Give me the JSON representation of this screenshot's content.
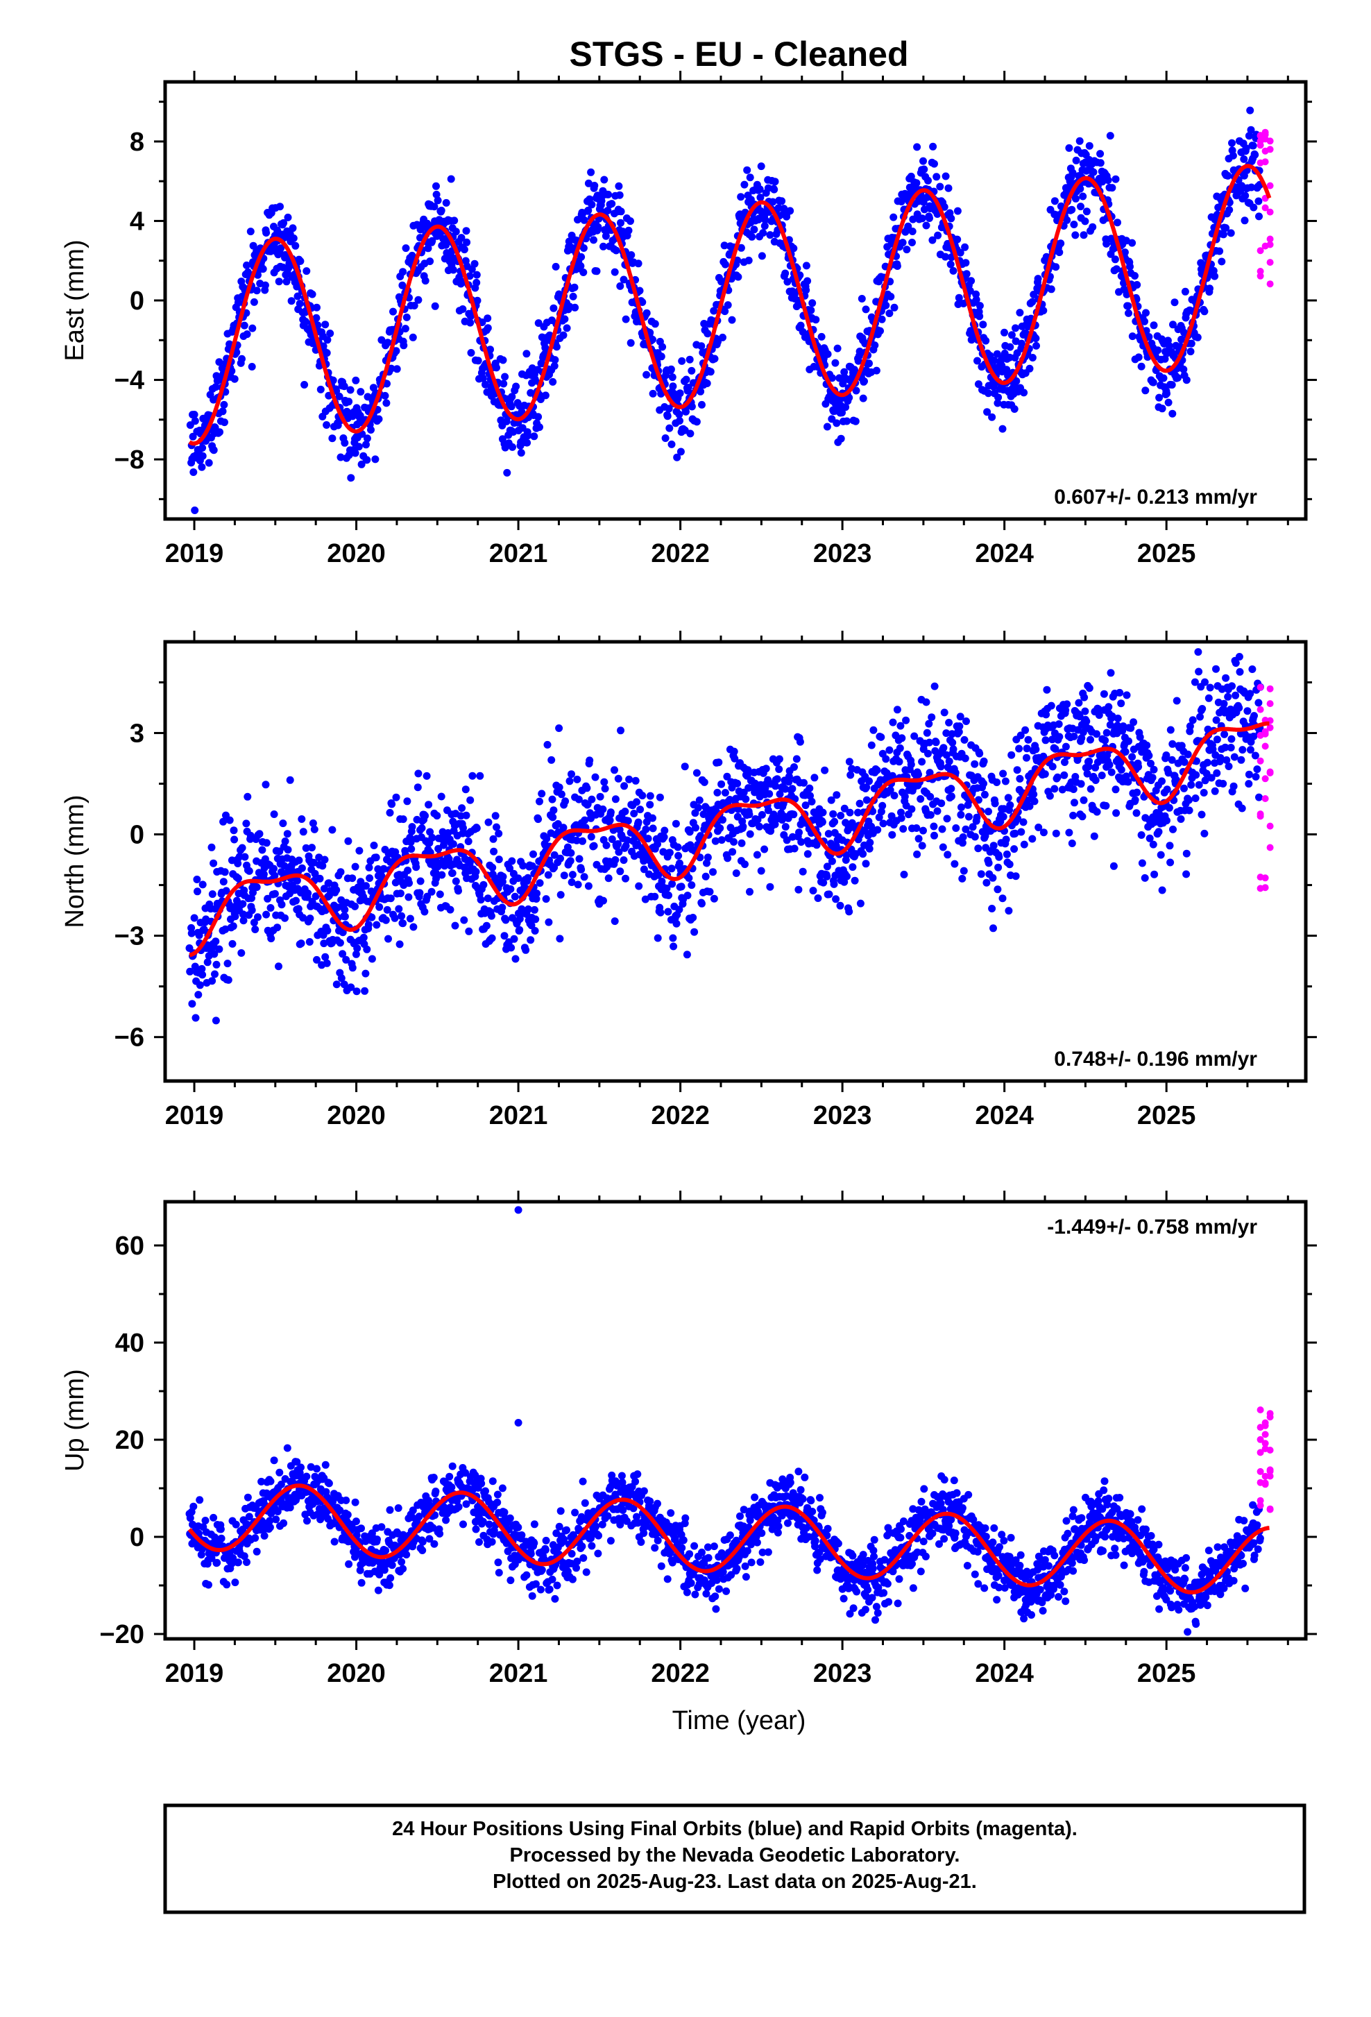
{
  "title": "STGS  - EU - Cleaned",
  "footer": {
    "lines": [
      "24 Hour Positions Using Final Orbits (blue) and Rapid Orbits (magenta).",
      "Processed by the Nevada Geodetic Laboratory.",
      "Plotted on 2025-Aug-23. Last data on 2025-Aug-21."
    ]
  },
  "colors": {
    "final": "#0000ff",
    "rapid": "#ff00ff",
    "model": "#ff0000",
    "axis": "#000000"
  },
  "chart_data": [
    {
      "type": "scatter",
      "ylabel": "East (mm)",
      "xlabel": "",
      "xlim": [
        2018.82,
        2025.86
      ],
      "ylim": [
        -11,
        11
      ],
      "yticks": [
        -8,
        -4,
        0,
        4,
        8
      ],
      "xticks": [
        2019,
        2020,
        2021,
        2022,
        2023,
        2024,
        2025
      ],
      "rate_label": "0.607+/- 0.213 mm/yr",
      "rate_position": "bottom-right",
      "model": {
        "offset": -2.2,
        "trend": 0.61,
        "annual_amp": 5.0,
        "annual_phase": 2019.25,
        "semi_amp": 0.0,
        "semi_phase": 0.0,
        "noise": 1.1
      },
      "rapid": {
        "x_range": [
          2025.58,
          2025.64
        ],
        "y_range": [
          0.6,
          9.2
        ]
      },
      "series": [
        {
          "name": "Final Orbits (blue)",
          "x_range": [
            2018.97,
            2025.58
          ]
        },
        {
          "name": "Rapid Orbits (magenta)",
          "x_range": [
            2025.58,
            2025.64
          ]
        }
      ]
    },
    {
      "type": "scatter",
      "ylabel": "North (mm)",
      "xlabel": "",
      "xlim": [
        2018.82,
        2025.86
      ],
      "ylim": [
        -7.3,
        5.7
      ],
      "yticks": [
        -6,
        -3,
        0,
        3
      ],
      "xticks": [
        2019,
        2020,
        2021,
        2022,
        2023,
        2024,
        2025
      ],
      "rate_label": "0.748+/- 0.196 mm/yr",
      "rate_position": "bottom-right",
      "model": {
        "offset": -2.3,
        "trend": 0.75,
        "annual_amp": 0.9,
        "annual_phase": 2019.22,
        "semi_amp": 0.35,
        "semi_phase": 2019.1,
        "noise": 1.0
      },
      "rapid": {
        "x_range": [
          2025.58,
          2025.64
        ],
        "y_range": [
          -1.6,
          4.9
        ]
      },
      "series": [
        {
          "name": "Final Orbits (blue)",
          "x_range": [
            2018.97,
            2025.58
          ]
        },
        {
          "name": "Rapid Orbits (magenta)",
          "x_range": [
            2025.58,
            2025.64
          ]
        }
      ]
    },
    {
      "type": "scatter",
      "ylabel": "Up (mm)",
      "xlabel": "Time (year)",
      "xlim": [
        2018.82,
        2025.86
      ],
      "ylim": [
        -21,
        69
      ],
      "yticks": [
        -20,
        0,
        20,
        40,
        60
      ],
      "xticks": [
        2019,
        2020,
        2021,
        2022,
        2023,
        2024,
        2025
      ],
      "rate_label": "-1.449+/- 0.758 mm/yr",
      "rate_position": "top-right",
      "model": {
        "offset": 4.5,
        "trend": -1.45,
        "annual_amp": 7.0,
        "annual_phase": 2019.4,
        "semi_amp": 0.0,
        "semi_phase": 0.0,
        "noise": 3.2
      },
      "rapid": {
        "x_range": [
          2025.58,
          2025.64
        ],
        "y_range": [
          5.5,
          26.5
        ]
      },
      "outliers": [
        {
          "x": 2021.0,
          "y": 67.3
        },
        {
          "x": 2021.0,
          "y": 23.5
        }
      ],
      "series": [
        {
          "name": "Final Orbits (blue)",
          "x_range": [
            2018.97,
            2025.58
          ]
        },
        {
          "name": "Rapid Orbits (magenta)",
          "x_range": [
            2025.58,
            2025.64
          ]
        }
      ]
    }
  ]
}
